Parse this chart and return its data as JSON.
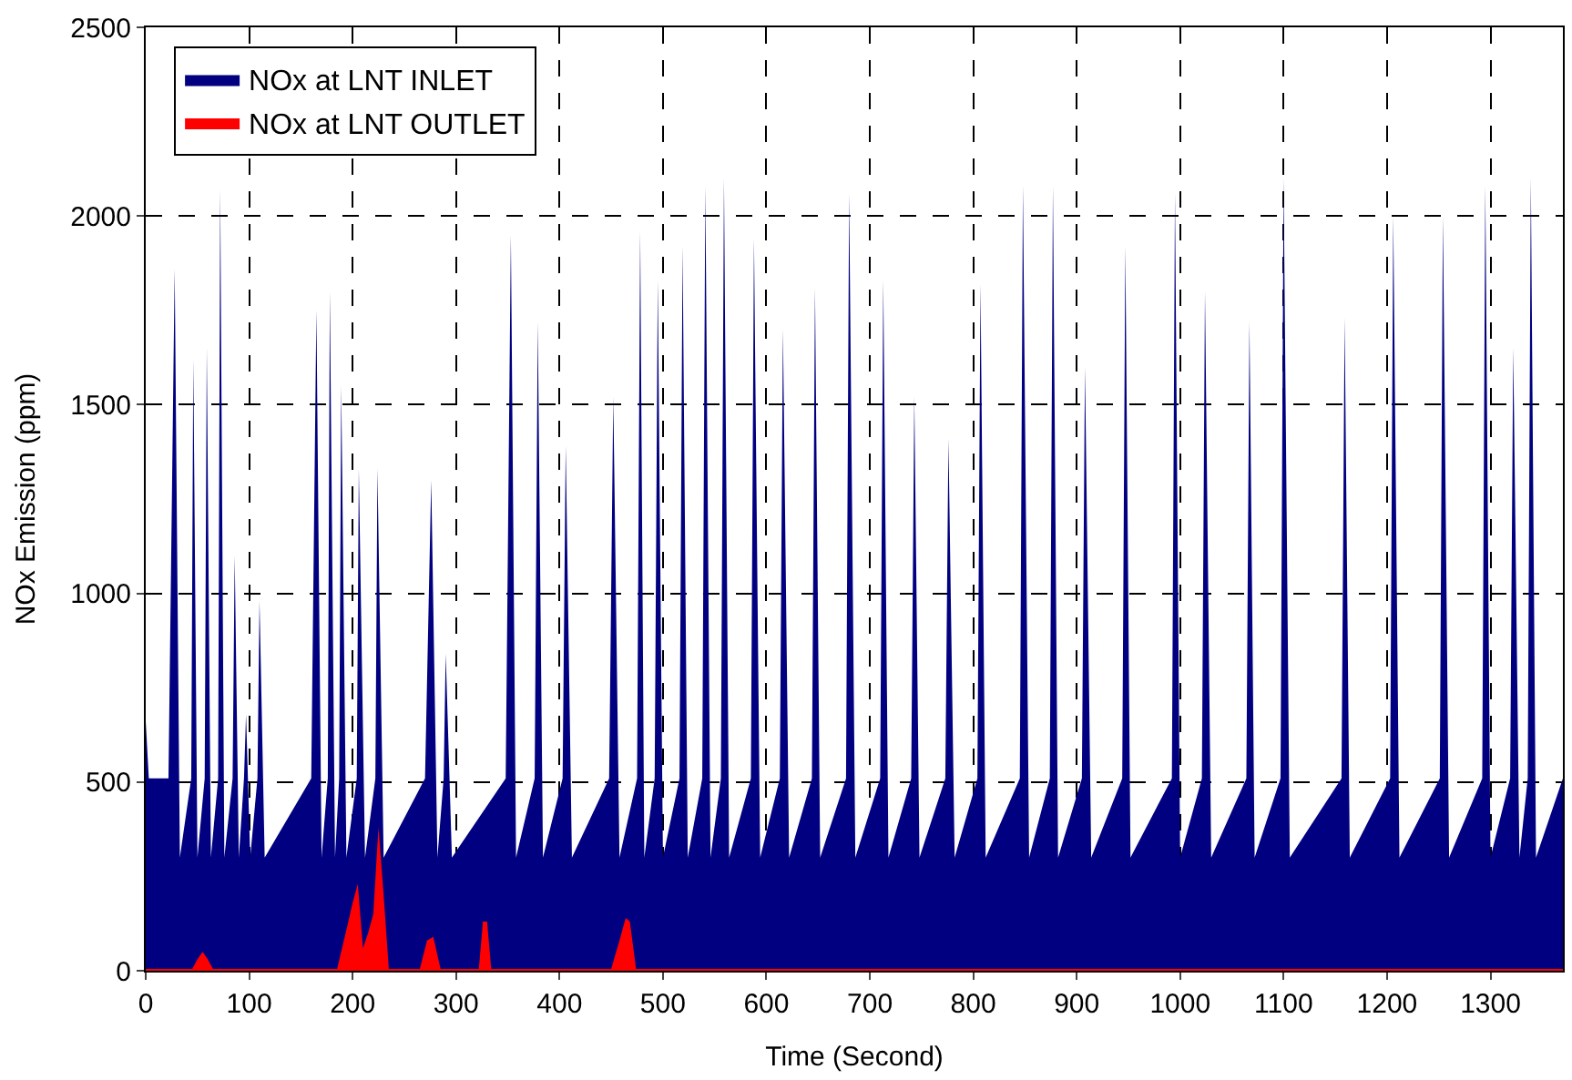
{
  "chart_data": {
    "type": "area",
    "xlabel": "Time (Second)",
    "ylabel": "NOx Emission (ppm)",
    "xlim": [
      0,
      1370
    ],
    "xticks": [
      0,
      100,
      200,
      300,
      400,
      500,
      600,
      700,
      800,
      900,
      1000,
      1100,
      1200,
      1300
    ],
    "ylim": [
      0,
      2500
    ],
    "yticks": [
      0,
      500,
      1000,
      1500,
      2000,
      2500
    ],
    "grid": true,
    "legend": "top left",
    "series": [
      {
        "name": "NOx at LNT INLET",
        "color": "#000080",
        "x": [
          0,
          3,
          22,
          28,
          33,
          44,
          46,
          50,
          57,
          59,
          63,
          70,
          72,
          76,
          84,
          86,
          90,
          95,
          97,
          101,
          108,
          110,
          115,
          160,
          165,
          170,
          176,
          178,
          183,
          187,
          189,
          194,
          204,
          206,
          212,
          222,
          224,
          230,
          270,
          276,
          282,
          288,
          290,
          296,
          348,
          353,
          358,
          376,
          379,
          384,
          403,
          406,
          412,
          448,
          452,
          458,
          475,
          478,
          482,
          492,
          495,
          500,
          516,
          519,
          524,
          538,
          541,
          546,
          556,
          559,
          564,
          585,
          588,
          594,
          613,
          616,
          622,
          644,
          647,
          652,
          677,
          680,
          686,
          710,
          713,
          718,
          740,
          743,
          748,
          773,
          776,
          782,
          804,
          807,
          812,
          845,
          848,
          854,
          874,
          877,
          882,
          905,
          908,
          914,
          944,
          947,
          952,
          992,
          995,
          1000,
          1021,
          1024,
          1030,
          1064,
          1067,
          1072,
          1097,
          1100,
          1106,
          1156,
          1159,
          1164,
          1203,
          1206,
          1212,
          1251,
          1254,
          1260,
          1292,
          1295,
          1300,
          1319,
          1322,
          1328,
          1336,
          1339,
          1344,
          1370
        ],
        "values": [
          660,
          510,
          510,
          1860,
          300,
          510,
          1620,
          300,
          510,
          1650,
          300,
          510,
          2070,
          300,
          510,
          1100,
          300,
          510,
          680,
          300,
          510,
          980,
          300,
          510,
          1750,
          300,
          510,
          1800,
          300,
          510,
          1550,
          300,
          510,
          1330,
          300,
          510,
          1330,
          300,
          510,
          1300,
          300,
          510,
          840,
          300,
          510,
          1950,
          300,
          510,
          1720,
          300,
          510,
          1390,
          300,
          510,
          1520,
          300,
          510,
          1960,
          300,
          510,
          1830,
          300,
          510,
          1920,
          300,
          510,
          2080,
          300,
          510,
          2100,
          300,
          510,
          1940,
          300,
          510,
          1700,
          300,
          510,
          1810,
          300,
          510,
          2060,
          300,
          510,
          1830,
          300,
          510,
          1520,
          300,
          510,
          1410,
          300,
          510,
          1820,
          300,
          510,
          2080,
          300,
          510,
          2080,
          300,
          510,
          1600,
          300,
          510,
          1920,
          300,
          510,
          2060,
          300,
          510,
          1800,
          300,
          510,
          1720,
          300,
          510,
          2100,
          300,
          510,
          1730,
          300,
          510,
          2000,
          300,
          510,
          2000,
          300,
          510,
          2080,
          300,
          510,
          1650,
          300,
          510,
          2100,
          300,
          510
        ]
      },
      {
        "name": "NOx at LNT OUTLET",
        "color": "#ff0000",
        "x": [
          0,
          45,
          50,
          55,
          60,
          65,
          185,
          195,
          200,
          205,
          210,
          215,
          220,
          225,
          230,
          235,
          265,
          272,
          278,
          285,
          322,
          326,
          330,
          334,
          450,
          458,
          464,
          468,
          474,
          1370
        ],
        "values": [
          5,
          5,
          30,
          50,
          30,
          5,
          5,
          120,
          180,
          230,
          60,
          100,
          150,
          380,
          200,
          5,
          5,
          80,
          90,
          5,
          5,
          130,
          130,
          5,
          5,
          80,
          140,
          130,
          5,
          5
        ]
      }
    ]
  }
}
